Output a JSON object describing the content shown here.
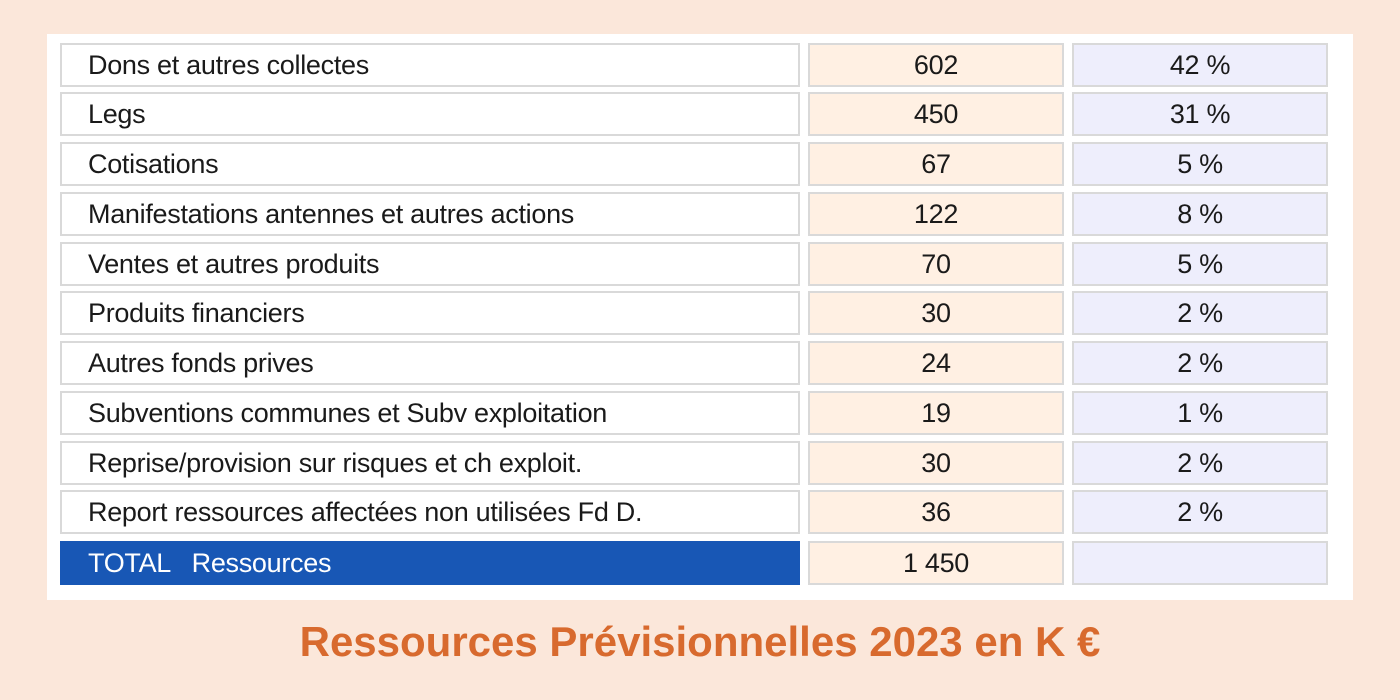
{
  "table": {
    "rows": [
      {
        "label": "Dons et autres collectes",
        "value": "602",
        "pct": "42 %"
      },
      {
        "label": "Legs",
        "value": "450",
        "pct": "31 %"
      },
      {
        "label": "Cotisations",
        "value": "67",
        "pct": "5 %"
      },
      {
        "label": "Manifestations antennes et autres actions",
        "value": "122",
        "pct": "8 %"
      },
      {
        "label": "Ventes et autres produits",
        "value": "70",
        "pct": "5 %"
      },
      {
        "label": "Produits financiers",
        "value": "30",
        "pct": "2 %"
      },
      {
        "label": "Autres fonds prives",
        "value": "24",
        "pct": "2 %"
      },
      {
        "label": "Subventions communes et Subv exploitation",
        "value": "19",
        "pct": "1 %"
      },
      {
        "label": "Reprise/provision sur risques et ch exploit.",
        "value": "30",
        "pct": "2 %"
      },
      {
        "label": "Report ressources affectées non utilisées Fd D.",
        "value": "36",
        "pct": "2 %"
      }
    ],
    "total": {
      "label": "TOTAL   Ressources",
      "value": "1 450",
      "pct": ""
    }
  },
  "caption": "Ressources Prévisionnelles 2023 en K €",
  "colors": {
    "background": "#fbe7da",
    "value_cell": "#fff0e3",
    "pct_cell": "#eeeefc",
    "total_label": "#1857b5",
    "caption": "#d86a2e"
  }
}
